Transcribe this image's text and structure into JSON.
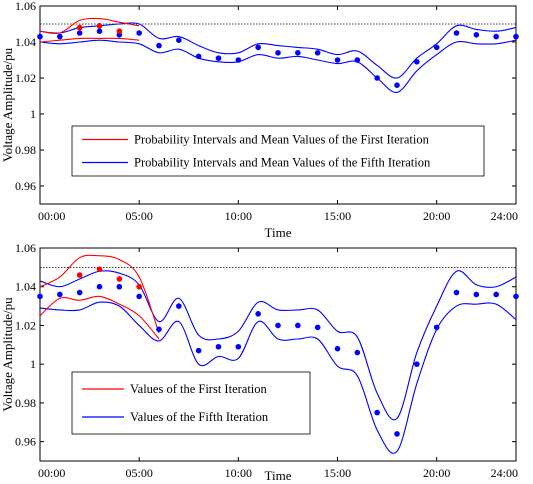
{
  "chart_data": [
    {
      "type": "line",
      "xlabel": "Time",
      "ylabel": "Voltage Amplitude/pu",
      "xlim": [
        0,
        24
      ],
      "ylim": [
        0.95,
        1.06
      ],
      "x_tick_labels": [
        "00:00",
        "05:00",
        "10:00",
        "15:00",
        "20:00",
        "24:00"
      ],
      "y_tick_labels": [
        "0.96",
        "0.98",
        "1",
        "1.02",
        "1.04",
        "1.06"
      ],
      "reference_line": 1.05,
      "legend": {
        "position": "lower-left",
        "entries": [
          {
            "label": "Probability Intervals and Mean Values of the First Iteration",
            "color": "#ff0000"
          },
          {
            "label": "Probability Intervals and Mean Values of the Fifth Iteration",
            "color": "#0000ff"
          }
        ]
      },
      "series": [
        {
          "name": "Probability Intervals and Mean Values of the First Iteration",
          "color": "#ff0000",
          "x": [
            0,
            1,
            2,
            3,
            4,
            5
          ],
          "upper": [
            1.046,
            1.045,
            1.052,
            1.053,
            1.051,
            1.049
          ],
          "lower": [
            1.04,
            1.041,
            1.042,
            1.042,
            1.042,
            1.041
          ]
        },
        {
          "name": "Probability Intervals and Mean Values of the Fifth Iteration",
          "color": "#0000ff",
          "x": [
            0,
            1,
            2,
            3,
            4,
            5,
            6,
            7,
            8,
            9,
            10,
            11,
            12,
            13,
            14,
            15,
            16,
            17,
            18,
            19,
            20,
            21,
            22,
            23,
            24
          ],
          "upper": [
            1.046,
            1.045,
            1.048,
            1.049,
            1.05,
            1.05,
            1.042,
            1.043,
            1.038,
            1.034,
            1.034,
            1.039,
            1.038,
            1.037,
            1.036,
            1.033,
            1.035,
            1.027,
            1.02,
            1.031,
            1.039,
            1.049,
            1.047,
            1.046,
            1.048
          ],
          "lower": [
            1.04,
            1.039,
            1.04,
            1.041,
            1.04,
            1.039,
            1.034,
            1.036,
            1.031,
            1.029,
            1.029,
            1.033,
            1.031,
            1.032,
            1.03,
            1.028,
            1.029,
            1.02,
            1.012,
            1.024,
            1.033,
            1.04,
            1.039,
            1.039,
            1.041
          ]
        }
      ],
      "mean_points": {
        "first": {
          "color": "#ff0000",
          "x": [
            2,
            3,
            4
          ],
          "y": [
            1.048,
            1.049,
            1.046
          ]
        },
        "fifth": {
          "color": "#0000ff",
          "x": [
            0,
            1,
            2,
            3,
            4,
            5,
            6,
            7,
            8,
            9,
            10,
            11,
            12,
            13,
            14,
            15,
            16,
            17,
            18,
            19,
            20,
            21,
            22,
            23,
            24
          ],
          "y": [
            1.043,
            1.043,
            1.045,
            1.046,
            1.044,
            1.045,
            1.038,
            1.041,
            1.032,
            1.031,
            1.03,
            1.037,
            1.034,
            1.034,
            1.034,
            1.03,
            1.03,
            1.02,
            1.016,
            1.029,
            1.037,
            1.045,
            1.044,
            1.043,
            1.043
          ]
        }
      }
    },
    {
      "type": "line",
      "xlabel": "Time",
      "ylabel": "Voltage Amplitude/pu",
      "xlim": [
        0,
        24
      ],
      "ylim": [
        0.95,
        1.06
      ],
      "x_tick_labels": [
        "00:00",
        "05:00",
        "10:00",
        "15:00",
        "20:00",
        "24:00"
      ],
      "y_tick_labels": [
        "0.96",
        "0.98",
        "1",
        "1.02",
        "1.04",
        "1.06"
      ],
      "reference_line": 1.05,
      "legend": {
        "position": "lower-left",
        "entries": [
          {
            "label": "Values of the First Iteration",
            "color": "#ff0000"
          },
          {
            "label": "Values of the Fifth Iteration",
            "color": "#0000ff"
          }
        ]
      },
      "series": [
        {
          "name": "Values of the First Iteration",
          "color": "#ff0000",
          "x": [
            0,
            1,
            2,
            3,
            4,
            5,
            6
          ],
          "upper": [
            1.04,
            1.045,
            1.055,
            1.056,
            1.054,
            1.045,
            1.016
          ],
          "lower": [
            1.025,
            1.034,
            1.033,
            1.035,
            1.031,
            1.025,
            1.013
          ]
        },
        {
          "name": "Values of the Fifth Iteration",
          "color": "#0000ff",
          "x": [
            0,
            1,
            2,
            3,
            4,
            5,
            6,
            7,
            8,
            9,
            10,
            11,
            12,
            13,
            14,
            15,
            16,
            17,
            18,
            19,
            20,
            21,
            22,
            23,
            24
          ],
          "upper": [
            1.043,
            1.04,
            1.044,
            1.048,
            1.047,
            1.041,
            1.022,
            1.034,
            1.015,
            1.013,
            1.017,
            1.032,
            1.028,
            1.028,
            1.028,
            1.017,
            1.014,
            0.985,
            0.972,
            1.006,
            1.03,
            1.048,
            1.041,
            1.04,
            1.045
          ],
          "lower": [
            1.029,
            1.028,
            1.028,
            1.032,
            1.03,
            1.02,
            1.012,
            1.022,
            1.0,
            1.004,
            1.003,
            1.022,
            1.013,
            1.013,
            1.013,
            0.999,
            0.994,
            0.966,
            0.955,
            0.99,
            1.018,
            1.03,
            1.031,
            1.031,
            1.023
          ]
        }
      ],
      "mean_points": {
        "first": {
          "color": "#ff0000",
          "x": [
            2,
            3,
            4,
            5
          ],
          "y": [
            1.046,
            1.049,
            1.044,
            1.04
          ]
        },
        "fifth": {
          "color": "#0000ff",
          "x": [
            0,
            1,
            2,
            3,
            4,
            5,
            6,
            7,
            8,
            9,
            10,
            11,
            12,
            13,
            14,
            15,
            16,
            17,
            18,
            19,
            20,
            21,
            22,
            23,
            24
          ],
          "y": [
            1.035,
            1.036,
            1.037,
            1.04,
            1.04,
            1.035,
            1.018,
            1.03,
            1.007,
            1.009,
            1.009,
            1.026,
            1.02,
            1.02,
            1.019,
            1.008,
            1.006,
            0.975,
            0.964,
            1.0,
            1.019,
            1.037,
            1.036,
            1.036,
            1.035
          ]
        }
      }
    }
  ]
}
